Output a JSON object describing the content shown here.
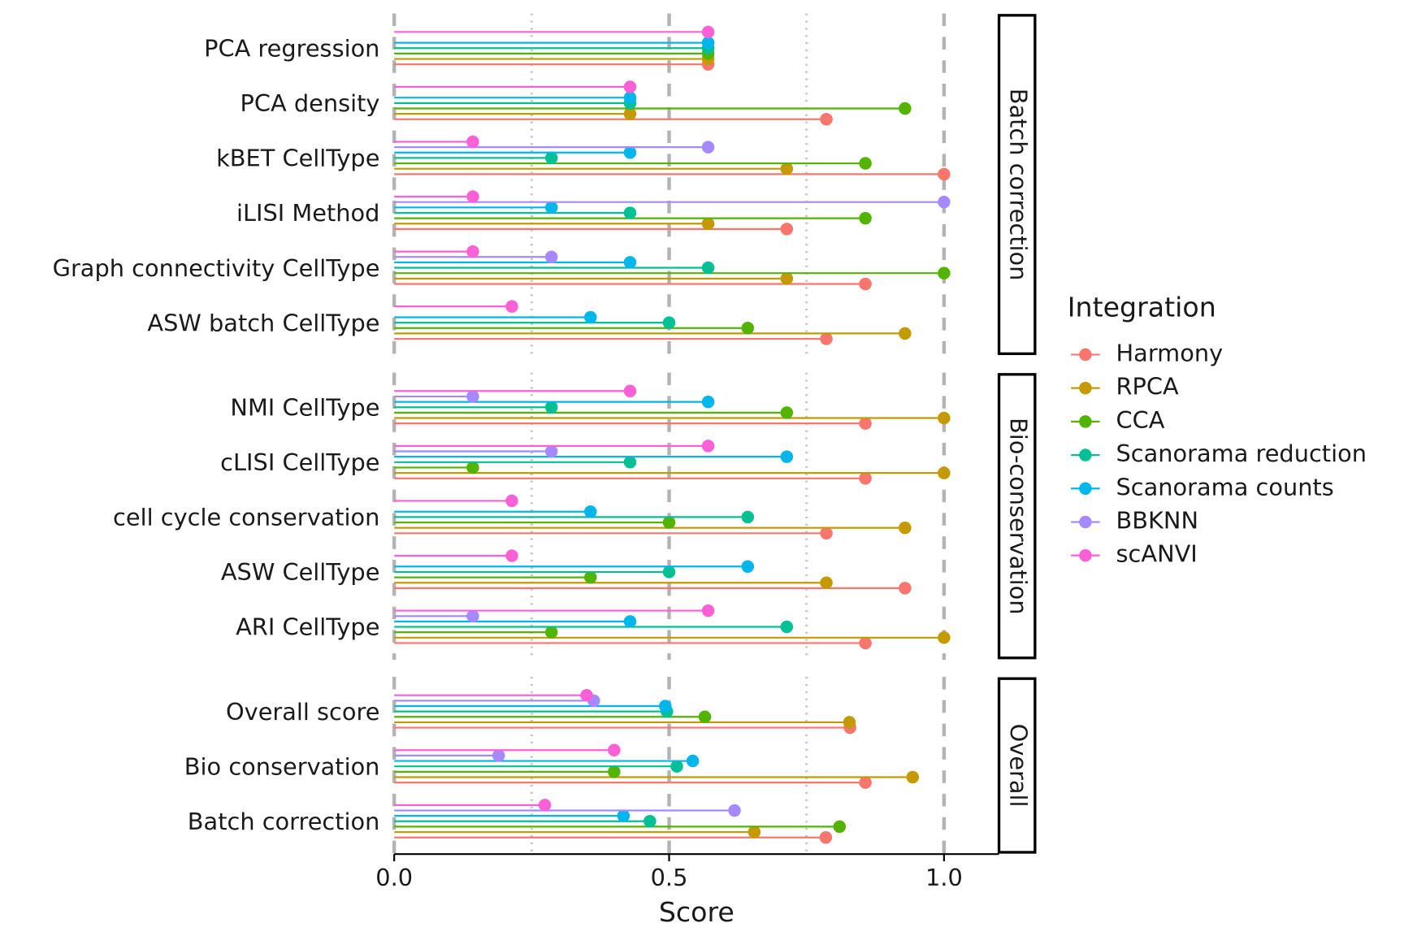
{
  "chart_data": [
    {
      "type": "lollipop",
      "facet_label": "Batch correction",
      "legend_title": "Integration",
      "categories": [
        "PCA regression",
        "PCA density",
        "kBET CellType",
        "iLISI Method",
        "Graph connectivity CellType",
        "ASW batch CellType"
      ],
      "xlim": [
        0,
        1.1
      ],
      "xticks": [
        {
          "value": 0,
          "label": "0.0"
        },
        {
          "value": 0.5,
          "label": "0.5"
        },
        {
          "value": 1,
          "label": "1.0"
        }
      ],
      "xminor": [
        0.25,
        0.75
      ],
      "series": [
        {
          "name": "Harmony",
          "color": "#F8766D",
          "values": [
            0.571,
            0.786,
            1.0,
            0.714,
            0.857,
            0.786
          ]
        },
        {
          "name": "RPCA",
          "color": "#C49A00",
          "values": [
            0.571,
            0.429,
            0.714,
            0.571,
            0.714,
            0.929
          ]
        },
        {
          "name": "CCA",
          "color": "#53B400",
          "values": [
            0.571,
            0.929,
            0.857,
            0.857,
            1.0,
            0.643
          ]
        },
        {
          "name": "Scanorama reduction",
          "color": "#00C094",
          "values": [
            0.571,
            0.429,
            0.286,
            0.429,
            0.571,
            0.5
          ]
        },
        {
          "name": "Scanorama counts",
          "color": "#00B6EB",
          "values": [
            0.571,
            0.429,
            0.429,
            0.286,
            0.429,
            0.357
          ]
        },
        {
          "name": "BBKNN",
          "color": "#A58AFF",
          "values": [
            null,
            null,
            0.571,
            1.0,
            0.286,
            null
          ]
        },
        {
          "name": "scANVI",
          "color": "#FB61D7",
          "values": [
            0.571,
            0.429,
            0.143,
            0.143,
            0.143,
            0.214
          ]
        }
      ]
    },
    {
      "type": "lollipop",
      "facet_label": "Bio-conservation",
      "categories": [
        "NMI CellType",
        "cLISI CellType",
        "cell cycle conservation",
        "ASW CellType",
        "ARI CellType"
      ],
      "xlim": [
        0,
        1.1
      ],
      "xticks": [
        {
          "value": 0,
          "label": "0.0"
        },
        {
          "value": 0.5,
          "label": "0.5"
        },
        {
          "value": 1,
          "label": "1.0"
        }
      ],
      "xminor": [
        0.25,
        0.75
      ],
      "series": [
        {
          "name": "Harmony",
          "color": "#F8766D",
          "values": [
            0.857,
            0.857,
            0.786,
            0.929,
            0.857
          ]
        },
        {
          "name": "RPCA",
          "color": "#C49A00",
          "values": [
            1.0,
            1.0,
            0.929,
            0.786,
            1.0
          ]
        },
        {
          "name": "CCA",
          "color": "#53B400",
          "values": [
            0.714,
            0.143,
            0.5,
            0.357,
            0.286
          ]
        },
        {
          "name": "Scanorama reduction",
          "color": "#00C094",
          "values": [
            0.286,
            0.429,
            0.643,
            0.5,
            0.714
          ]
        },
        {
          "name": "Scanorama counts",
          "color": "#00B6EB",
          "values": [
            0.571,
            0.714,
            0.357,
            0.643,
            0.429
          ]
        },
        {
          "name": "BBKNN",
          "color": "#A58AFF",
          "values": [
            0.143,
            0.286,
            null,
            null,
            0.143
          ]
        },
        {
          "name": "scANVI",
          "color": "#FB61D7",
          "values": [
            0.429,
            0.571,
            0.214,
            0.214,
            0.571
          ]
        }
      ]
    },
    {
      "type": "lollipop",
      "facet_label": "Overall",
      "xlabel": "Score",
      "categories": [
        "Overall score",
        "Bio conservation",
        "Batch correction"
      ],
      "xlim": [
        0,
        1.1
      ],
      "xticks": [
        {
          "value": 0,
          "label": "0.0"
        },
        {
          "value": 0.5,
          "label": "0.5"
        },
        {
          "value": 1,
          "label": "1.0"
        }
      ],
      "xminor": [
        0.25,
        0.75
      ],
      "series": [
        {
          "name": "Harmony",
          "color": "#F8766D",
          "values": [
            0.829,
            0.857,
            0.785
          ]
        },
        {
          "name": "RPCA",
          "color": "#C49A00",
          "values": [
            0.828,
            0.943,
            0.655
          ]
        },
        {
          "name": "CCA",
          "color": "#53B400",
          "values": [
            0.565,
            0.4,
            0.81
          ]
        },
        {
          "name": "Scanorama reduction",
          "color": "#00C094",
          "values": [
            0.496,
            0.514,
            0.465
          ]
        },
        {
          "name": "Scanorama counts",
          "color": "#00B6EB",
          "values": [
            0.493,
            0.543,
            0.417
          ]
        },
        {
          "name": "BBKNN",
          "color": "#A58AFF",
          "values": [
            0.363,
            0.19,
            0.619
          ]
        },
        {
          "name": "scANVI",
          "color": "#FB61D7",
          "values": [
            0.35,
            0.4,
            0.274
          ]
        }
      ]
    }
  ]
}
